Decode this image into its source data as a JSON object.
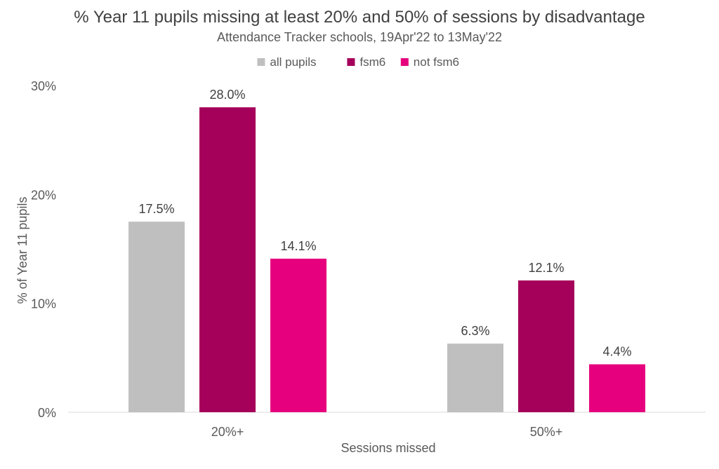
{
  "chart_data": {
    "type": "bar",
    "title": "% Year 11 pupils missing at least 20% and 50% of sessions by disadvantage",
    "subtitle": "Attendance Tracker schools, 19Apr'22 to 13May'22",
    "xlabel": "Sessions missed",
    "ylabel": "% of Year 11 pupils",
    "categories": [
      "20%+",
      "50%+"
    ],
    "series": [
      {
        "name": "all pupils",
        "values": [
          17.5,
          6.3
        ],
        "color": "#bfbfbf"
      },
      {
        "name": "fsm6",
        "values": [
          28.0,
          12.1
        ],
        "color": "#a5005a"
      },
      {
        "name": "not fsm6",
        "values": [
          14.1,
          4.4
        ],
        "color": "#e6007e"
      }
    ],
    "data_labels": [
      [
        "17.5%",
        "6.3%"
      ],
      [
        "28.0%",
        "12.1%"
      ],
      [
        "14.1%",
        "4.4%"
      ]
    ],
    "ylim": [
      0,
      30
    ],
    "yticks": [
      0,
      10,
      20,
      30
    ],
    "ytick_labels": [
      "0%",
      "10%",
      "20%",
      "30%"
    ],
    "grid": false,
    "legend_position": "top-center"
  }
}
